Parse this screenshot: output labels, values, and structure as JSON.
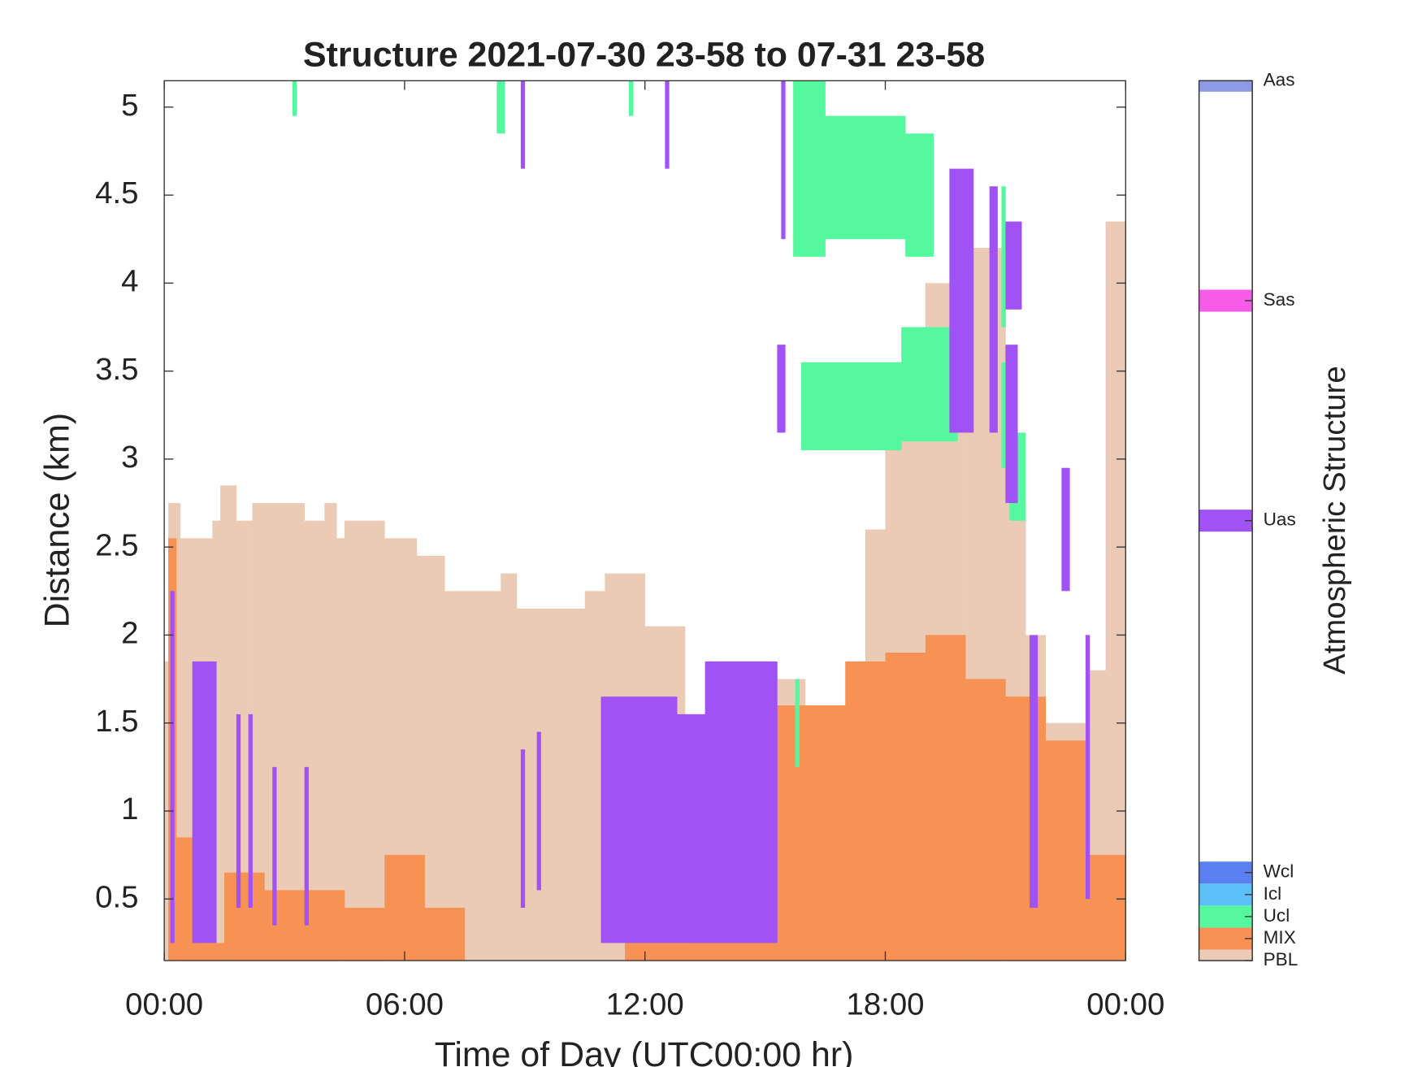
{
  "chart_data": {
    "type": "interval-profile",
    "title": "Structure 2021-07-30 23-58 to 07-31 23-58",
    "x_label": "Time of Day (UTC00:00 hr)",
    "y_label": "Distance (km)",
    "xlim": [
      0,
      24
    ],
    "xticks": [
      {
        "value": 0,
        "label": "00:00"
      },
      {
        "value": 6,
        "label": "06:00"
      },
      {
        "value": 12,
        "label": "12:00"
      },
      {
        "value": 18,
        "label": "18:00"
      },
      {
        "value": 24,
        "label": "00:00"
      }
    ],
    "ylim": [
      0.15,
      5.15
    ],
    "yticks": [
      0.5,
      1,
      1.5,
      2,
      2.5,
      3,
      3.5,
      4,
      4.5,
      5
    ],
    "colorbar": {
      "label": "Atmospheric Structure",
      "clim": [
        0,
        40
      ]
    },
    "series": [
      {
        "name": "PBL",
        "color": "#ebcbb5",
        "value": 0,
        "intervals": [
          [
            0,
            0.1,
            0.15,
            1.85
          ],
          [
            0.1,
            0.4,
            0.15,
            2.75
          ],
          [
            0.4,
            1.2,
            0.15,
            2.55
          ],
          [
            1.2,
            1.4,
            0.15,
            2.65
          ],
          [
            1.4,
            1.8,
            0.15,
            2.85
          ],
          [
            1.8,
            2.2,
            0.15,
            2.65
          ],
          [
            2.2,
            3.5,
            0.15,
            2.75
          ],
          [
            3.5,
            4,
            0.15,
            2.65
          ],
          [
            4,
            4.3,
            0.15,
            2.75
          ],
          [
            4.3,
            4.5,
            0.15,
            2.55
          ],
          [
            4.5,
            5.5,
            0.15,
            2.65
          ],
          [
            5.5,
            6.3,
            0.15,
            2.55
          ],
          [
            6.3,
            7,
            0.15,
            2.45
          ],
          [
            7,
            8.4,
            0.15,
            2.25
          ],
          [
            8.4,
            8.8,
            0.15,
            2.35
          ],
          [
            8.8,
            10.5,
            0.15,
            2.15
          ],
          [
            10.5,
            11,
            0.15,
            2.25
          ],
          [
            11,
            12,
            0.15,
            2.35
          ],
          [
            12,
            13,
            0.15,
            2.05
          ],
          [
            13,
            13.5,
            0.15,
            1.55
          ],
          [
            13.5,
            15,
            0.15,
            1.85
          ],
          [
            15,
            16,
            0.15,
            1.75
          ],
          [
            16,
            17,
            0.15,
            1.6
          ],
          [
            17,
            17.5,
            0.15,
            1.45
          ],
          [
            17.5,
            18,
            0.15,
            2.6
          ],
          [
            18,
            19,
            0.15,
            3.5
          ],
          [
            19,
            20,
            0.15,
            4.0
          ],
          [
            20,
            21,
            0.15,
            4.2
          ],
          [
            21,
            21.5,
            0.15,
            2.8
          ],
          [
            21.5,
            22,
            0.15,
            2.0
          ],
          [
            22,
            23,
            0.15,
            1.5
          ],
          [
            23,
            23.5,
            0.15,
            1.8
          ],
          [
            23.5,
            24,
            0.15,
            4.35
          ]
        ]
      },
      {
        "name": "MIX",
        "color": "#f79154",
        "value": 1,
        "intervals": [
          [
            0.1,
            0.3,
            0.15,
            2.55
          ],
          [
            0.3,
            1,
            0.15,
            0.85
          ],
          [
            1,
            1.5,
            0.15,
            0.25
          ],
          [
            1.5,
            2.5,
            0.15,
            0.65
          ],
          [
            2.5,
            4.5,
            0.15,
            0.55
          ],
          [
            4.5,
            5.5,
            0.15,
            0.45
          ],
          [
            5.5,
            6.5,
            0.15,
            0.75
          ],
          [
            6.5,
            7.5,
            0.15,
            0.45
          ],
          [
            11.5,
            13,
            0.15,
            0.25
          ],
          [
            13,
            13.5,
            0.15,
            0.75
          ],
          [
            13.5,
            15.3,
            0.15,
            0.45
          ],
          [
            15.3,
            17,
            0.15,
            1.6
          ],
          [
            17,
            18,
            0.15,
            1.85
          ],
          [
            18,
            19,
            0.15,
            1.9
          ],
          [
            19,
            20,
            0.15,
            2.0
          ],
          [
            20,
            21,
            0.15,
            1.75
          ],
          [
            21,
            22,
            0.15,
            1.65
          ],
          [
            22,
            23,
            0.15,
            1.4
          ],
          [
            23,
            24,
            0.15,
            0.75
          ]
        ]
      },
      {
        "name": "Ucl",
        "color": "#55f79f",
        "value": 2,
        "intervals": [
          [
            3.2,
            3.3,
            4.95,
            5.15
          ],
          [
            8.3,
            8.5,
            4.85,
            5.15
          ],
          [
            11.6,
            11.7,
            4.95,
            5.15
          ],
          [
            15.7,
            16.5,
            4.15,
            5.15
          ],
          [
            16.5,
            18.5,
            4.25,
            4.95
          ],
          [
            18.5,
            19.2,
            4.15,
            4.85
          ],
          [
            15.9,
            18.4,
            3.05,
            3.55
          ],
          [
            18.4,
            19.8,
            3.1,
            3.75
          ],
          [
            20.9,
            21.1,
            2.95,
            3.55
          ],
          [
            21.1,
            21.5,
            2.65,
            3.15
          ],
          [
            20.9,
            21.0,
            3.75,
            4.55
          ],
          [
            15.75,
            15.85,
            1.25,
            1.75
          ]
        ]
      },
      {
        "name": "Icl",
        "color": "#5bc0f8",
        "value": 3,
        "intervals": []
      },
      {
        "name": "Wcl",
        "color": "#5a7ff0",
        "value": 4,
        "intervals": []
      },
      {
        "name": "Uas",
        "color": "#a052f5",
        "value": 20,
        "intervals": [
          [
            0.15,
            0.25,
            0.25,
            2.25
          ],
          [
            0.7,
            1.3,
            0.25,
            1.85
          ],
          [
            1.8,
            1.9,
            0.45,
            1.55
          ],
          [
            2.1,
            2.2,
            0.45,
            1.55
          ],
          [
            2.7,
            2.8,
            0.35,
            1.25
          ],
          [
            3.5,
            3.6,
            0.35,
            1.25
          ],
          [
            8.9,
            9.0,
            0.45,
            1.35
          ],
          [
            9.3,
            9.4,
            0.55,
            1.45
          ],
          [
            8.9,
            9.0,
            4.65,
            5.15
          ],
          [
            12.5,
            12.6,
            4.65,
            5.15
          ],
          [
            10.9,
            12.8,
            0.25,
            1.65
          ],
          [
            12.8,
            13.5,
            0.25,
            1.55
          ],
          [
            13.5,
            15.3,
            0.25,
            1.85
          ],
          [
            15.3,
            15.5,
            3.15,
            3.65
          ],
          [
            15.4,
            15.5,
            4.25,
            5.15
          ],
          [
            19.6,
            20.2,
            3.15,
            4.65
          ],
          [
            20.6,
            20.8,
            3.15,
            4.55
          ],
          [
            21.0,
            21.4,
            3.85,
            4.35
          ],
          [
            21.0,
            21.3,
            2.75,
            3.65
          ],
          [
            22.4,
            22.6,
            2.25,
            2.95
          ],
          [
            21.6,
            21.8,
            0.45,
            2.0
          ],
          [
            23.0,
            23.1,
            0.5,
            2.0
          ]
        ]
      },
      {
        "name": "Sas",
        "color": "#f75ce8",
        "value": 30,
        "intervals": []
      },
      {
        "name": "Aas",
        "color": "#8d9be6",
        "value": 40,
        "intervals": []
      }
    ]
  }
}
